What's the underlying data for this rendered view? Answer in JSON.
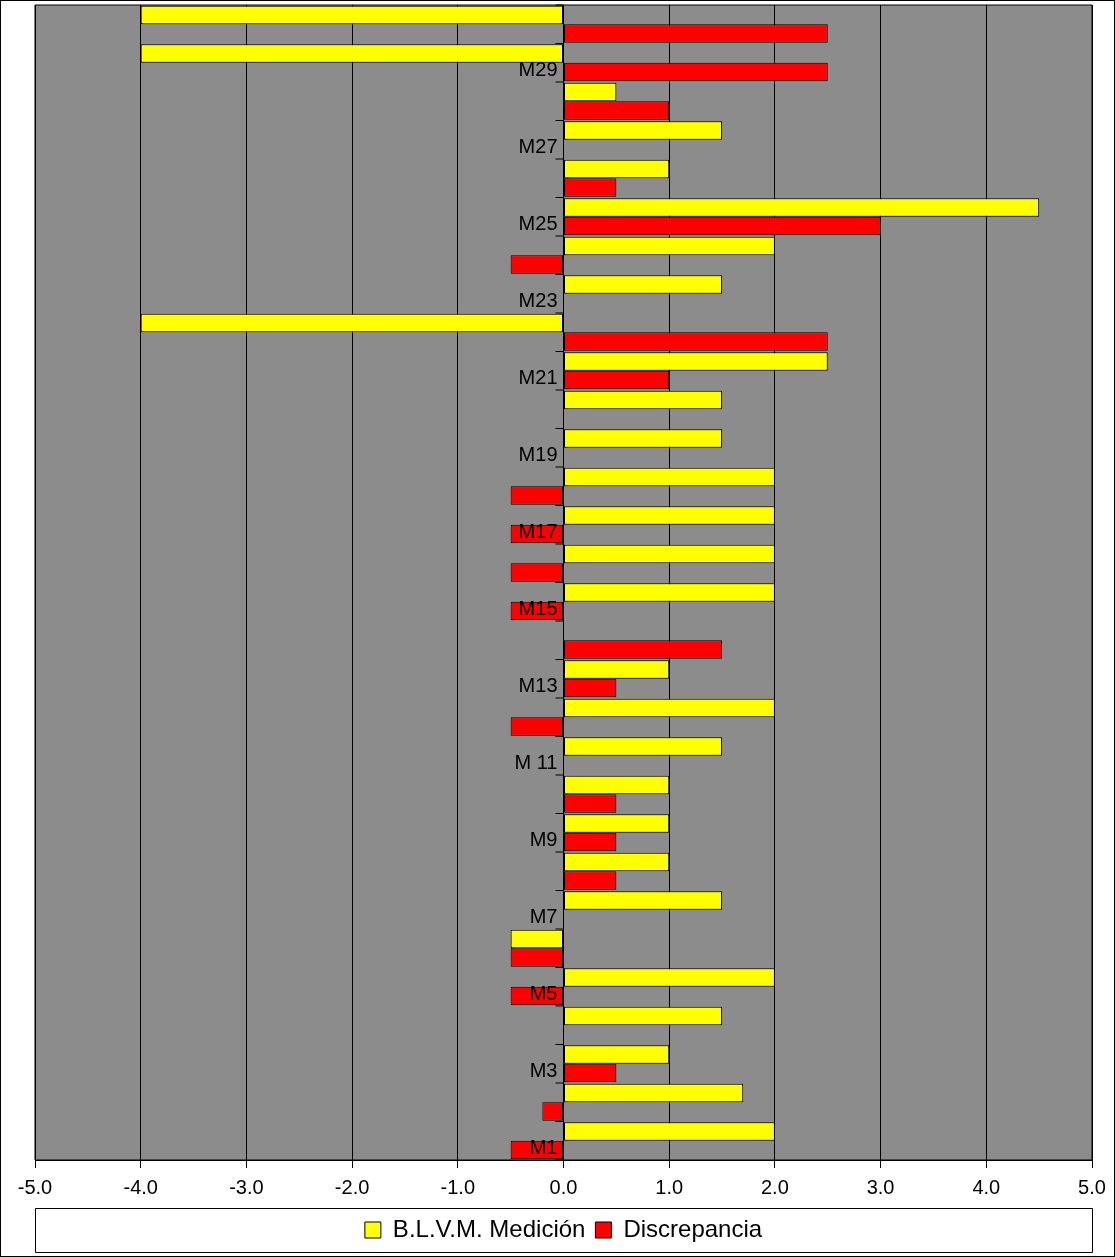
{
  "chart_data": {
    "type": "bar",
    "orientation": "horizontal",
    "categories": [
      null,
      "M29",
      null,
      "M27",
      null,
      "M25",
      null,
      "M23",
      null,
      "M21",
      null,
      "M19",
      null,
      "M17",
      null,
      "M15",
      null,
      "M13",
      null,
      "M 11",
      null,
      "M9",
      null,
      "M7",
      null,
      "M5",
      null,
      "M3",
      null,
      "M1"
    ],
    "series": [
      {
        "name": "B.L.V.M. Medición",
        "color": "#ffff00",
        "values": [
          -4.0,
          -4.0,
          0.5,
          1.5,
          1.0,
          4.5,
          2.0,
          1.5,
          -4.0,
          2.5,
          1.5,
          1.5,
          2.0,
          2.0,
          2.0,
          2.0,
          null,
          1.0,
          2.0,
          1.5,
          1.0,
          1.0,
          1.0,
          1.5,
          -0.5,
          2.0,
          1.5,
          1.0,
          1.7,
          2.0
        ]
      },
      {
        "name": "Discrepancia",
        "color": "#ff0000",
        "values": [
          2.5,
          2.5,
          1.0,
          null,
          0.5,
          3.0,
          -0.5,
          null,
          2.5,
          1.0,
          null,
          null,
          -0.5,
          -0.5,
          -0.5,
          -0.5,
          1.5,
          0.5,
          -0.5,
          null,
          0.5,
          0.5,
          0.5,
          null,
          -0.5,
          -0.5,
          null,
          0.5,
          -0.2,
          -0.5
        ]
      }
    ],
    "xlim": [
      -5,
      5
    ],
    "xticks": [
      {
        "value": -5,
        "label": "-5.0"
      },
      {
        "value": -4,
        "label": "-4.0"
      },
      {
        "value": -3,
        "label": "-3.0"
      },
      {
        "value": -2,
        "label": "-2.0"
      },
      {
        "value": -1,
        "label": "-1.0"
      },
      {
        "value": 0,
        "label": "0.0"
      },
      {
        "value": 1,
        "label": "1.0"
      },
      {
        "value": 2,
        "label": "2.0"
      },
      {
        "value": 3,
        "label": "3.0"
      },
      {
        "value": 4,
        "label": "4.0"
      },
      {
        "value": 5,
        "label": "5.0"
      }
    ],
    "grid": "x",
    "legend": "bottom"
  }
}
